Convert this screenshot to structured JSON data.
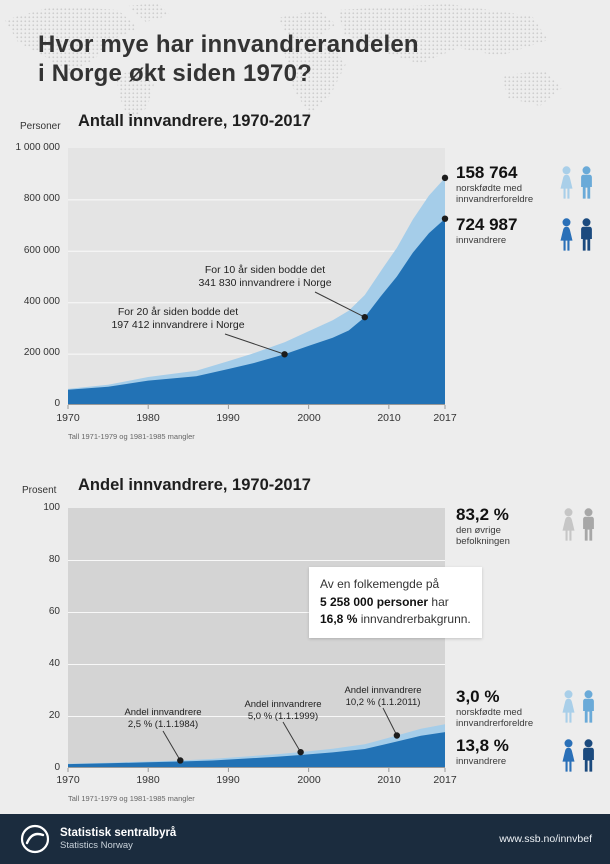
{
  "page_title": {
    "line1": "Hvor mye har innvandrerandelen",
    "line2": "i Norge økt siden 1970?"
  },
  "colors": {
    "dark_blue": "#2272b5",
    "light_blue": "#a5cde9",
    "chart1_bg": "#e4e4e4",
    "gray_area": "#d4d4d4",
    "footer_bg": "#1b2c3e",
    "icon_light_a": "#a9cfe9",
    "icon_light_b": "#6aaad8",
    "icon_dark_a": "#2a70b8",
    "icon_dark_b": "#1b4a7e",
    "icon_gray_a": "#c6c6c6",
    "icon_gray_b": "#a7a7a7"
  },
  "chart1": {
    "unit_label": "Personer",
    "title": "Antall innvandrere, 1970-2017",
    "y_ticks": [
      "1 000 000",
      "800 000",
      "600 000",
      "400 000",
      "200 000",
      "0"
    ],
    "x_ticks": [
      "1970",
      "1980",
      "1990",
      "2000",
      "2010",
      "2017"
    ],
    "footnote": "Tall 1971-1979 og 1981-1985 mangler",
    "ann_10yr": {
      "line1": "For 10 år siden bodde det",
      "line2": "341 830 innvandrere i Norge"
    },
    "ann_20yr": {
      "line1": "For 20 år siden bodde det",
      "line2": "197 412 innvandrere i Norge"
    },
    "stat_top": {
      "value": "158 764",
      "label1": "norskfødte med",
      "label2": "innvandrerforeldre"
    },
    "stat_bottom": {
      "value": "724 987",
      "label1": "innvandrere"
    }
  },
  "chart2": {
    "unit_label": "Prosent",
    "title": "Andel innvandrere, 1970-2017",
    "y_ticks": [
      "100",
      "80",
      "60",
      "40",
      "20",
      "0"
    ],
    "x_ticks": [
      "1970",
      "1980",
      "1990",
      "2000",
      "2010",
      "2017"
    ],
    "footnote": "Tall 1971-1979 og 1981-1985 mangler",
    "infobox": {
      "line1": "Av en folkemengde på",
      "line2_bold": "5 258 000 personer",
      "line2_rest": " har",
      "line3_bold": "16,8 %",
      "line3_rest": " innvandrerbakgrunn."
    },
    "ann_1984": {
      "line1": "Andel innvandrere",
      "line2": "2,5 % (1.1.1984)"
    },
    "ann_1999": {
      "line1": "Andel innvandrere",
      "line2": "5,0 % (1.1.1999)"
    },
    "ann_2011": {
      "line1": "Andel innvandrere",
      "line2": "10,2 % (1.1.2011)"
    },
    "stat_other": {
      "value": "83,2 %",
      "label1": "den øvrige",
      "label2": "befolkningen"
    },
    "stat_norskfodte": {
      "value": "3,0 %",
      "label1": "norskfødte med",
      "label2": "innvandrerforeldre"
    },
    "stat_innvandrere": {
      "value": "13,8 %",
      "label1": "innvandrere"
    }
  },
  "footer": {
    "org": "Statistisk sentralbyrå",
    "org_en": "Statistics Norway",
    "url": "www.ssb.no/innvbef"
  },
  "chart_data": [
    {
      "type": "area",
      "title": "Antall innvandrere, 1970-2017",
      "ylabel": "Personer",
      "xlabel": "",
      "xlim": [
        1970,
        2017
      ],
      "ylim": [
        0,
        1000000
      ],
      "grid": true,
      "legend_position": "right",
      "x": [
        1970,
        1975,
        1980,
        1986,
        1990,
        1993,
        1997,
        2000,
        2003,
        2005,
        2007,
        2009,
        2011,
        2013,
        2015,
        2017
      ],
      "series": [
        {
          "name": "innvandrere",
          "values": [
            59000,
            71000,
            95000,
            112000,
            140000,
            162000,
            197412,
            230000,
            262000,
            290000,
            341830,
            423000,
            500000,
            593000,
            669000,
            724987
          ]
        },
        {
          "name": "norskfødte med innvandrerforeldre",
          "values": [
            3500,
            7500,
            14000,
            21000,
            31000,
            38000,
            47000,
            57000,
            68000,
            77000,
            86000,
            98000,
            112000,
            129000,
            146000,
            158764
          ]
        }
      ],
      "annotations": [
        {
          "x": 1997,
          "y": 197412,
          "text": "For 20 år siden bodde det 197 412 innvandrere i Norge"
        },
        {
          "x": 2007,
          "y": 341830,
          "text": "For 10 år siden bodde det 341 830 innvandrere i Norge"
        },
        {
          "x": 2017,
          "y": 724987,
          "text": "724 987 innvandrere"
        },
        {
          "x": 2017,
          "y": 883751,
          "text": "158 764 norskfødte med innvandrerforeldre"
        }
      ]
    },
    {
      "type": "area",
      "title": "Andel innvandrere, 1970-2017",
      "ylabel": "Prosent",
      "xlabel": "",
      "xlim": [
        1970,
        2017
      ],
      "ylim": [
        0,
        100
      ],
      "grid": true,
      "legend_position": "right",
      "x": [
        1970,
        1975,
        1980,
        1984,
        1988,
        1992,
        1996,
        1999,
        2003,
        2007,
        2011,
        2014,
        2017
      ],
      "series": [
        {
          "name": "innvandrere",
          "values": [
            1.5,
            1.8,
            2.2,
            2.5,
            2.9,
            3.6,
            4.3,
            5.0,
            6.0,
            7.3,
            10.2,
            12.4,
            13.8
          ]
        },
        {
          "name": "norskfødte med innvandrerforeldre",
          "values": [
            0.1,
            0.2,
            0.3,
            0.4,
            0.6,
            0.8,
            1.0,
            1.1,
            1.4,
            1.8,
            2.3,
            2.7,
            3.0
          ]
        },
        {
          "name": "den øvrige befolkningen",
          "values": [
            98.4,
            98.0,
            97.5,
            97.1,
            96.5,
            95.6,
            94.7,
            93.9,
            92.6,
            90.9,
            87.5,
            84.9,
            83.2
          ]
        }
      ],
      "annotations": [
        {
          "x": 1984,
          "y": 2.5,
          "text": "Andel innvandrere 2,5 % (1.1.1984)"
        },
        {
          "x": 1999,
          "y": 5.0,
          "text": "Andel innvandrere 5,0 % (1.1.1999)"
        },
        {
          "x": 2011,
          "y": 10.2,
          "text": "Andel innvandrere 10,2 % (1.1.2011)"
        },
        {
          "x": 2017,
          "y": 13.8,
          "text": "13,8 % innvandrere"
        },
        {
          "x": 2017,
          "y": 3.0,
          "text": "3,0 % norskfødte med innvandrerforeldre"
        },
        {
          "x": 2017,
          "y": 83.2,
          "text": "83,2 % den øvrige befolkningen"
        }
      ]
    }
  ]
}
